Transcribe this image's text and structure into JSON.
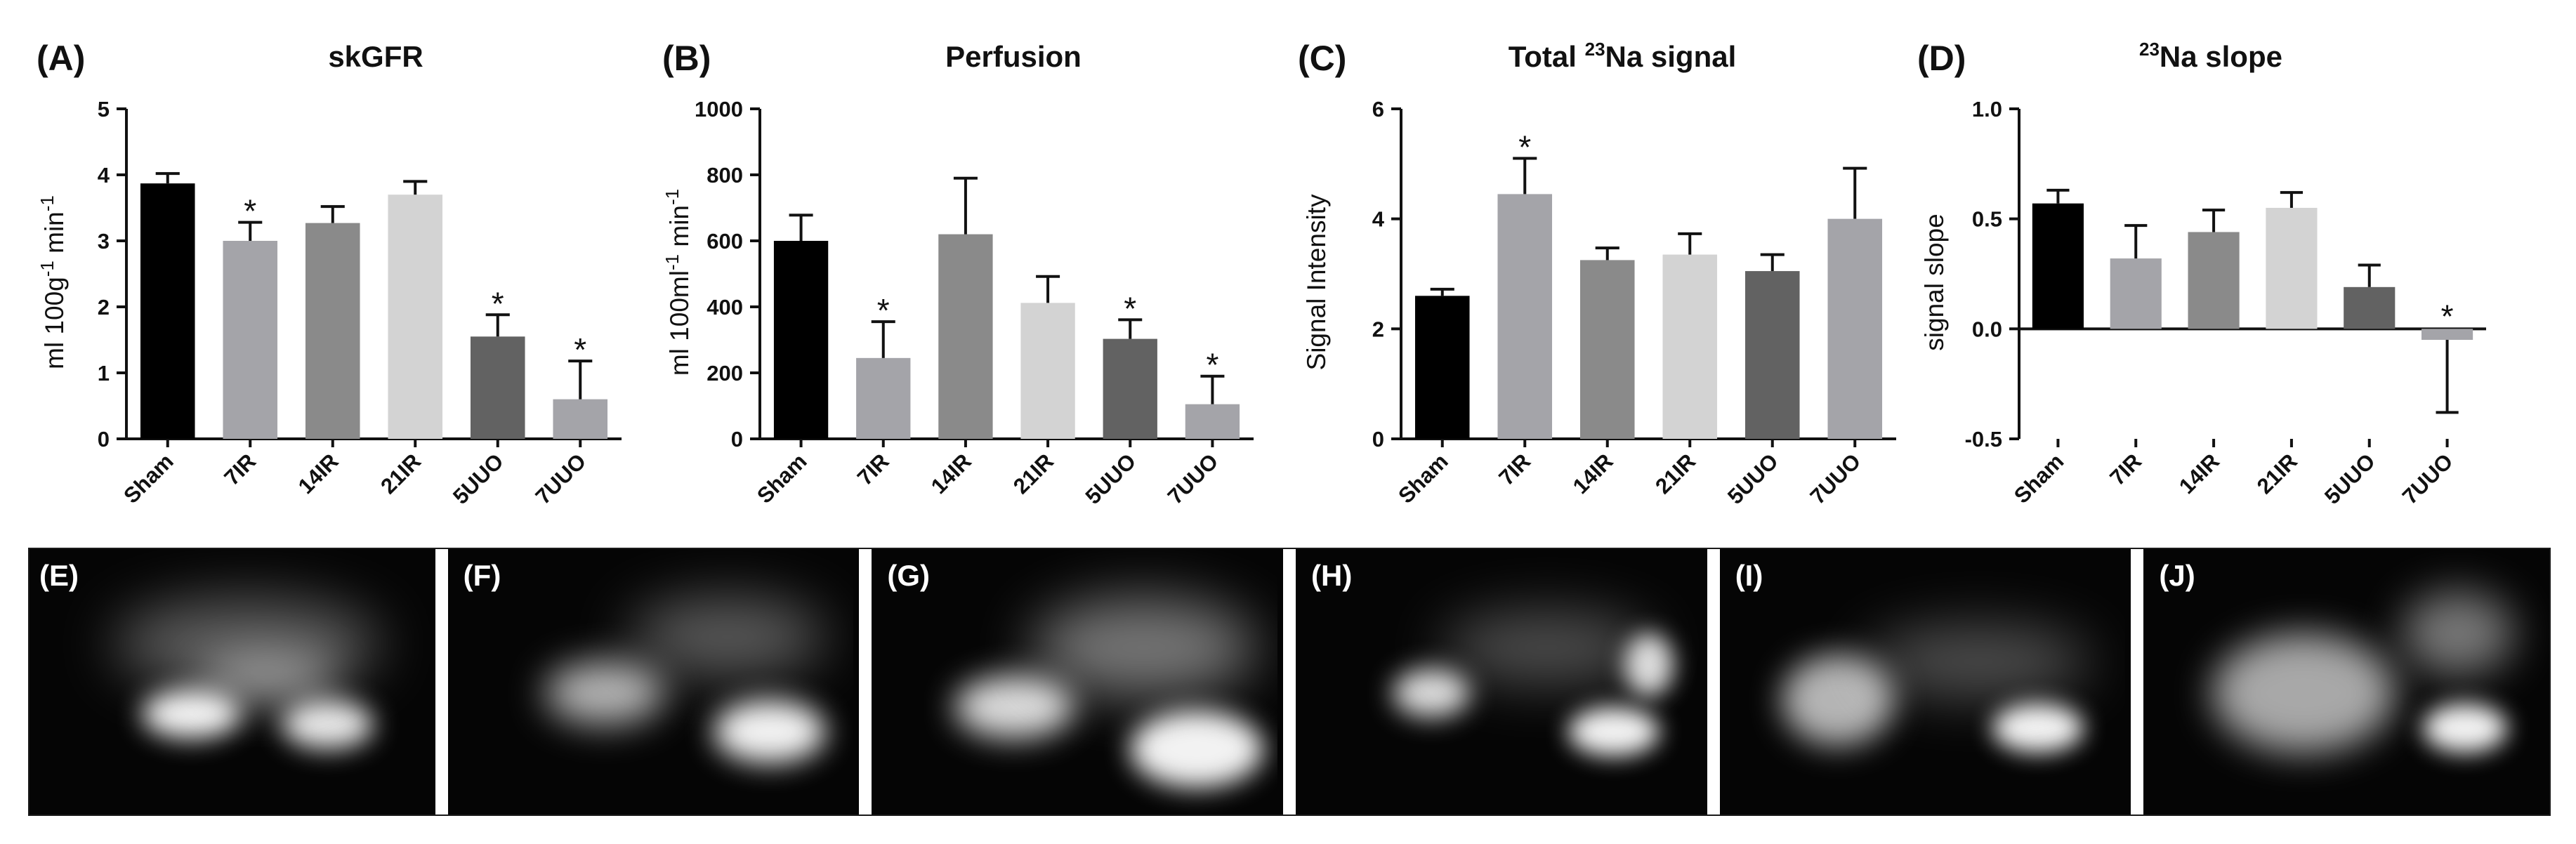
{
  "chart_data": [
    {
      "type": "bar",
      "panel": "(A)",
      "title": "skGFR",
      "ylabel": "ml 100g-1 min-1",
      "ylabel_parts": {
        "a": "ml 100g",
        "sup1": "-1",
        "b": " min",
        "sup2": "-1"
      },
      "categories": [
        "Sham",
        "7IR",
        "14IR",
        "21IR",
        "5UUO",
        "7UUO"
      ],
      "values": [
        3.87,
        3.0,
        3.27,
        3.7,
        1.55,
        0.6
      ],
      "errors": [
        0.15,
        0.28,
        0.25,
        0.2,
        0.33,
        0.58
      ],
      "significant": [
        false,
        true,
        false,
        false,
        true,
        true
      ],
      "star_label": "*",
      "colors": [
        "#000000",
        "#a4a4a9",
        "#8a8a8a",
        "#d3d3d3",
        "#626262",
        "#a4a4a9"
      ],
      "ylim": [
        0,
        5
      ],
      "yticks": [
        0,
        1,
        2,
        3,
        4,
        5
      ],
      "ytick_labels": [
        "0",
        "1",
        "2",
        "3",
        "4",
        "5"
      ]
    },
    {
      "type": "bar",
      "panel": "(B)",
      "title": "Perfusion",
      "ylabel": "ml 100ml-1 min-1",
      "ylabel_parts": {
        "a": "ml 100ml",
        "sup1": "-1",
        "b": " min",
        "sup2": "-1"
      },
      "categories": [
        "Sham",
        "7IR",
        "14IR",
        "21IR",
        "5UUO",
        "7UUO"
      ],
      "values": [
        600,
        245,
        620,
        412,
        303,
        105
      ],
      "errors": [
        78,
        110,
        170,
        80,
        58,
        85
      ],
      "significant": [
        false,
        true,
        false,
        false,
        true,
        true
      ],
      "star_label": "*",
      "colors": [
        "#000000",
        "#a4a4a9",
        "#8a8a8a",
        "#d3d3d3",
        "#626262",
        "#a4a4a9"
      ],
      "ylim": [
        0,
        1000
      ],
      "yticks": [
        0,
        200,
        400,
        600,
        800,
        1000
      ],
      "ytick_labels": [
        "0",
        "200",
        "400",
        "600",
        "800",
        "1000"
      ]
    },
    {
      "type": "bar",
      "panel": "(C)",
      "title": "Total 23Na signal",
      "title_parts": {
        "a": "Total ",
        "sup": "23",
        "b": "Na signal"
      },
      "ylabel": "Signal Intensity",
      "categories": [
        "Sham",
        "7IR",
        "14IR",
        "21IR",
        "5UUO",
        "7UUO"
      ],
      "values": [
        2.6,
        4.45,
        3.25,
        3.35,
        3.05,
        4.0
      ],
      "errors": [
        0.12,
        0.65,
        0.22,
        0.38,
        0.3,
        0.92
      ],
      "significant": [
        false,
        true,
        false,
        false,
        false,
        false
      ],
      "star_label": "*",
      "colors": [
        "#000000",
        "#a4a4a9",
        "#8a8a8a",
        "#d3d3d3",
        "#626262",
        "#a4a4a9"
      ],
      "ylim": [
        0,
        6
      ],
      "yticks": [
        0,
        2,
        4,
        6
      ],
      "ytick_labels": [
        "0",
        "2",
        "4",
        "6"
      ]
    },
    {
      "type": "bar",
      "panel": "(D)",
      "title": "23Na slope",
      "title_parts": {
        "a": "",
        "sup": "23",
        "b": "Na slope"
      },
      "ylabel": "signal slope",
      "categories": [
        "Sham",
        "7IR",
        "14IR",
        "21IR",
        "5UUO",
        "7UUO"
      ],
      "values": [
        0.57,
        0.32,
        0.44,
        0.55,
        0.19,
        -0.05
      ],
      "errors": [
        0.06,
        0.15,
        0.1,
        0.07,
        0.1,
        0.33
      ],
      "significant": [
        false,
        false,
        false,
        false,
        false,
        true
      ],
      "star_label": "*",
      "colors": [
        "#000000",
        "#a4a4a9",
        "#8a8a8a",
        "#d3d3d3",
        "#626262",
        "#a4a4a9"
      ],
      "ylim": [
        -0.5,
        1.0
      ],
      "yticks": [
        -0.5,
        0.0,
        0.5,
        1.0
      ],
      "ytick_labels": [
        "-0.5",
        "0.0",
        "0.5",
        "1.0"
      ]
    }
  ],
  "images": [
    {
      "label": "(E)"
    },
    {
      "label": "(F)"
    },
    {
      "label": "(G)"
    },
    {
      "label": "(H)"
    },
    {
      "label": "(I)"
    },
    {
      "label": "(J)"
    }
  ]
}
